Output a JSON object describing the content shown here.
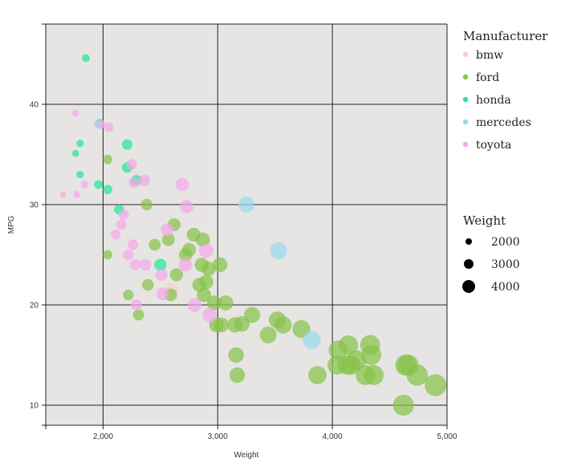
{
  "chart_data": {
    "type": "scatter",
    "title": "",
    "xlabel": "Weight",
    "ylabel": "MPG",
    "xlim": [
      1500,
      5000
    ],
    "ylim": [
      8,
      48
    ],
    "x_ticks": [
      2000,
      3000,
      4000,
      5000
    ],
    "x_tick_labels": [
      "2,000",
      "3,000",
      "4,000",
      "5,000"
    ],
    "y_ticks": [
      10,
      20,
      30,
      40
    ],
    "y_tick_labels": [
      "10",
      "20",
      "30",
      "40"
    ],
    "grid": true,
    "background": "#e6e5e3",
    "size_encoding": "Weight",
    "legend": {
      "color_title": "Manufacturer",
      "size_title": "Weight",
      "placement": "right",
      "size_entries": [
        {
          "label": "2000",
          "value": 2000
        },
        {
          "label": "3000",
          "value": 3000
        },
        {
          "label": "4000",
          "value": 4000
        }
      ]
    },
    "series": [
      {
        "name": "bmw",
        "color": "#f5cfc8",
        "points": [
          [
            2600,
            21.5
          ]
        ]
      },
      {
        "name": "ford",
        "color": "#86c44a",
        "points": [
          [
            2040,
            34.5
          ],
          [
            2040,
            25
          ],
          [
            2220,
            21
          ],
          [
            2310,
            19
          ],
          [
            2380,
            30
          ],
          [
            2390,
            22
          ],
          [
            2450,
            26
          ],
          [
            2570,
            26.5
          ],
          [
            2590,
            21
          ],
          [
            2620,
            28
          ],
          [
            2640,
            23
          ],
          [
            2720,
            25
          ],
          [
            2750,
            25.5
          ],
          [
            2790,
            27
          ],
          [
            2840,
            22
          ],
          [
            2860,
            24
          ],
          [
            2870,
            26.5
          ],
          [
            2880,
            21
          ],
          [
            2900,
            22.3
          ],
          [
            2920,
            23.6
          ],
          [
            2970,
            20.2
          ],
          [
            2990,
            18
          ],
          [
            3020,
            24
          ],
          [
            3030,
            18
          ],
          [
            3070,
            20.2
          ],
          [
            3150,
            18
          ],
          [
            3160,
            15
          ],
          [
            3170,
            13
          ],
          [
            3210,
            18.1
          ],
          [
            3300,
            19
          ],
          [
            3440,
            17
          ],
          [
            3520,
            18.5
          ],
          [
            3570,
            18
          ],
          [
            3730,
            17.6
          ],
          [
            3870,
            13
          ],
          [
            4040,
            14
          ],
          [
            4050,
            15.5
          ],
          [
            4130,
            14
          ],
          [
            4140,
            16
          ],
          [
            4160,
            14
          ],
          [
            4210,
            14.5
          ],
          [
            4290,
            13
          ],
          [
            4330,
            16
          ],
          [
            4340,
            15
          ],
          [
            4360,
            13
          ],
          [
            4620,
            10
          ],
          [
            4640,
            14
          ],
          [
            4660,
            14
          ],
          [
            4740,
            13
          ],
          [
            4900,
            12
          ]
        ]
      },
      {
        "name": "honda",
        "color": "#22e89a",
        "points": [
          [
            1850,
            44.6
          ],
          [
            1760,
            35.1
          ],
          [
            1800,
            36.1
          ],
          [
            1800,
            33
          ],
          [
            1960,
            32
          ],
          [
            1970,
            38.1
          ],
          [
            2040,
            31.5
          ],
          [
            2140,
            29.5
          ],
          [
            2210,
            36
          ],
          [
            2210,
            33.7
          ],
          [
            2290,
            32.4
          ],
          [
            2500,
            24
          ]
        ]
      },
      {
        "name": "mercedes",
        "color": "#9bd9ed",
        "points": [
          [
            1960,
            38
          ],
          [
            3250,
            30
          ],
          [
            3530,
            25.4
          ],
          [
            3820,
            16.5
          ]
        ]
      },
      {
        "name": "toyota",
        "color": "#f4a8ea",
        "points": [
          [
            1650,
            31
          ],
          [
            1760,
            39.1
          ],
          [
            1770,
            31
          ],
          [
            1840,
            32
          ],
          [
            1980,
            38
          ],
          [
            2050,
            37.7
          ],
          [
            2110,
            27
          ],
          [
            2160,
            28
          ],
          [
            2180,
            29
          ],
          [
            2220,
            25
          ],
          [
            2250,
            34
          ],
          [
            2260,
            26
          ],
          [
            2270,
            32.2
          ],
          [
            2280,
            24
          ],
          [
            2290,
            20
          ],
          [
            2360,
            32.4
          ],
          [
            2370,
            24
          ],
          [
            2510,
            23
          ],
          [
            2520,
            21.1
          ],
          [
            2560,
            27.5
          ],
          [
            2690,
            32
          ],
          [
            2720,
            24
          ],
          [
            2730,
            29.8
          ],
          [
            2800,
            20
          ],
          [
            2900,
            25.4
          ],
          [
            2930,
            19
          ]
        ]
      }
    ]
  }
}
